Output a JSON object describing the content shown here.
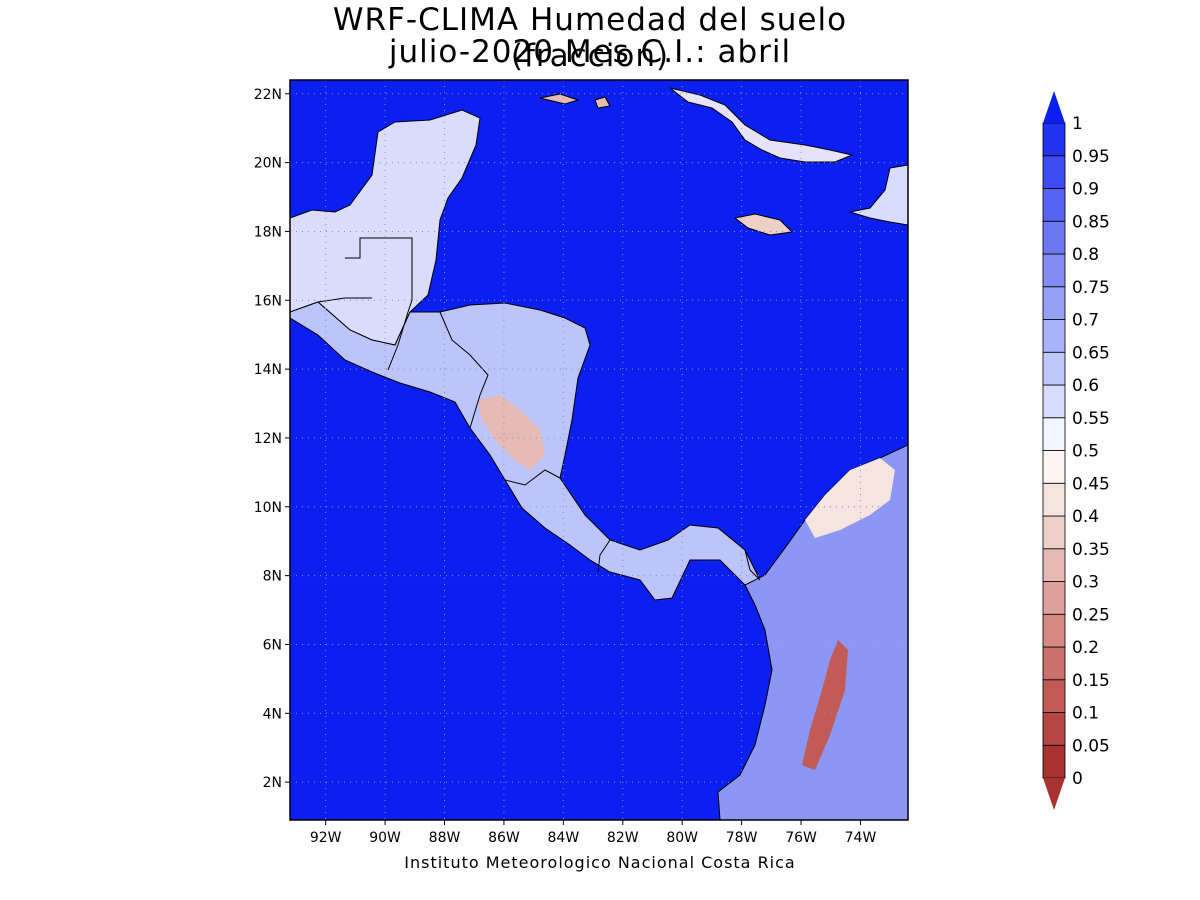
{
  "title": {
    "line1": "WRF-CLIMA Humedad del suelo (fraccion)",
    "line2": "julio-2020 Mes C.I.: abril"
  },
  "map": {
    "lon_range": [
      -93.2,
      -72.4
    ],
    "lat_range": [
      0.9,
      22.4
    ],
    "lat_ticks": [
      "2N",
      "4N",
      "6N",
      "8N",
      "10N",
      "12N",
      "14N",
      "16N",
      "18N",
      "20N",
      "22N"
    ],
    "lon_ticks": [
      "92W",
      "90W",
      "88W",
      "86W",
      "84W",
      "82W",
      "80W",
      "78W",
      "76W",
      "74W"
    ],
    "ocean_color": "#0a1ff0",
    "gridlines": true
  },
  "colorbar": {
    "labels": [
      "0",
      "0.05",
      "0.1",
      "0.15",
      "0.2",
      "0.25",
      "0.3",
      "0.35",
      "0.4",
      "0.45",
      "0.5",
      "0.55",
      "0.6",
      "0.65",
      "0.7",
      "0.75",
      "0.8",
      "0.85",
      "0.9",
      "0.95",
      "1"
    ],
    "colors": [
      "#a8322f",
      "#b54643",
      "#c25a56",
      "#cc706b",
      "#d68983",
      "#dea29c",
      "#e6bab4",
      "#eed0cb",
      "#f5e4e0",
      "#fbf5f3",
      "#f3f5ff",
      "#d8ddff",
      "#c0c7fb",
      "#aab3f8",
      "#96a0f5",
      "#828cf3",
      "#6c78f1",
      "#5563f1",
      "#3d4cf1",
      "#2233f0"
    ],
    "extend_low_color": "#a8322f",
    "extend_high_color": "#0a1ff0"
  },
  "credit": "Instituto Meteorologico Nacional Costa Rica"
}
